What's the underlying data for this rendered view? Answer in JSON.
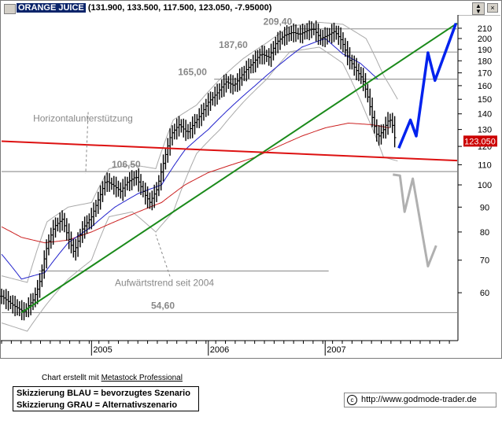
{
  "window": {
    "symbol": "ORANGE JUICE",
    "quote": "(131.900, 133.500, 117.500, 123.050, -7.95000)",
    "buttons": {
      "minimize": "_",
      "maximize": "□",
      "close": "×"
    }
  },
  "chart_data": {
    "type": "line",
    "subtype": "ohlc-bars-with-indicators",
    "title": "ORANGE JUICE",
    "y_scale": "log",
    "ylim": [
      48,
      222
    ],
    "y_ticks": [
      60,
      70,
      80,
      90,
      100,
      110,
      120,
      130,
      140,
      150,
      160,
      170,
      180,
      190,
      200,
      210
    ],
    "x_labels": [
      {
        "label": "2005",
        "t": 2005.0
      },
      {
        "label": "2006",
        "t": 2006.0
      },
      {
        "label": "2007",
        "t": 2007.0
      }
    ],
    "xlim": [
      2004.23,
      2008.13
    ],
    "last_price": {
      "value": 123.05,
      "label": "123.050",
      "color": "#cc0000"
    },
    "series_colors": {
      "price": "#000000",
      "bollinger": "#aaaaaa",
      "ma_short": "#2222cc",
      "ma_long": "#cc2222",
      "trendline": "#1a8a1a",
      "horizontal_support": "#dd1111",
      "levels": "#999999",
      "scenario_blue": "#0022ee",
      "scenario_gray": "#b0b0b0"
    },
    "price_anchors": [
      [
        2004.23,
        59.0
      ],
      [
        2004.33,
        56.5
      ],
      [
        2004.42,
        54.8
      ],
      [
        2004.5,
        58.0
      ],
      [
        2004.55,
        62.0
      ],
      [
        2004.62,
        75.0
      ],
      [
        2004.68,
        82.0
      ],
      [
        2004.75,
        85.0
      ],
      [
        2004.8,
        78.0
      ],
      [
        2004.85,
        72.5
      ],
      [
        2004.92,
        81.0
      ],
      [
        2005.0,
        86.0
      ],
      [
        2005.08,
        96.0
      ],
      [
        2005.12,
        102.0
      ],
      [
        2005.18,
        100.0
      ],
      [
        2005.25,
        97.0
      ],
      [
        2005.3,
        101.0
      ],
      [
        2005.38,
        104.0
      ],
      [
        2005.45,
        96.0
      ],
      [
        2005.5,
        92.0
      ],
      [
        2005.56,
        98.0
      ],
      [
        2005.62,
        112.0
      ],
      [
        2005.68,
        127.0
      ],
      [
        2005.75,
        133.0
      ],
      [
        2005.82,
        128.0
      ],
      [
        2005.88,
        134.0
      ],
      [
        2005.94,
        140.0
      ],
      [
        2006.0,
        148.0
      ],
      [
        2006.08,
        155.0
      ],
      [
        2006.15,
        163.0
      ],
      [
        2006.22,
        160.0
      ],
      [
        2006.3,
        170.0
      ],
      [
        2006.38,
        178.0
      ],
      [
        2006.45,
        186.0
      ],
      [
        2006.52,
        183.0
      ],
      [
        2006.58,
        196.0
      ],
      [
        2006.65,
        203.0
      ],
      [
        2006.72,
        206.0
      ],
      [
        2006.78,
        204.0
      ],
      [
        2006.85,
        208.0
      ],
      [
        2006.9,
        209.4
      ],
      [
        2006.96,
        200.0
      ],
      [
        2007.02,
        203.0
      ],
      [
        2007.08,
        207.0
      ],
      [
        2007.14,
        198.0
      ],
      [
        2007.2,
        182.0
      ],
      [
        2007.26,
        173.0
      ],
      [
        2007.32,
        165.0
      ],
      [
        2007.37,
        150.0
      ],
      [
        2007.41,
        135.0
      ],
      [
        2007.45,
        125.0
      ],
      [
        2007.5,
        130.0
      ],
      [
        2007.55,
        137.0
      ],
      [
        2007.58,
        131.9
      ],
      [
        2007.6,
        123.05
      ]
    ],
    "bollinger_upper": [
      [
        2004.23,
        65
      ],
      [
        2004.45,
        63
      ],
      [
        2004.62,
        84
      ],
      [
        2004.8,
        90
      ],
      [
        2005.0,
        92
      ],
      [
        2005.15,
        108
      ],
      [
        2005.35,
        110
      ],
      [
        2005.55,
        108
      ],
      [
        2005.7,
        136
      ],
      [
        2005.9,
        146
      ],
      [
        2006.1,
        165
      ],
      [
        2006.3,
        182
      ],
      [
        2006.5,
        196
      ],
      [
        2006.7,
        212
      ],
      [
        2006.95,
        216
      ],
      [
        2007.15,
        214
      ],
      [
        2007.35,
        200
      ],
      [
        2007.5,
        168
      ],
      [
        2007.62,
        150
      ]
    ],
    "bollinger_lower": [
      [
        2004.23,
        52
      ],
      [
        2004.45,
        50
      ],
      [
        2004.62,
        57
      ],
      [
        2004.8,
        64
      ],
      [
        2005.0,
        70
      ],
      [
        2005.15,
        86
      ],
      [
        2005.35,
        88
      ],
      [
        2005.55,
        80
      ],
      [
        2005.7,
        88
      ],
      [
        2005.9,
        116
      ],
      [
        2006.1,
        130
      ],
      [
        2006.3,
        148
      ],
      [
        2006.5,
        165
      ],
      [
        2006.7,
        188
      ],
      [
        2006.95,
        192
      ],
      [
        2007.15,
        178
      ],
      [
        2007.35,
        140
      ],
      [
        2007.5,
        114
      ],
      [
        2007.62,
        112
      ]
    ],
    "ma_short": [
      [
        2004.23,
        72
      ],
      [
        2004.4,
        64
      ],
      [
        2004.6,
        66
      ],
      [
        2004.8,
        76
      ],
      [
        2005.0,
        82
      ],
      [
        2005.2,
        90
      ],
      [
        2005.4,
        96
      ],
      [
        2005.6,
        100
      ],
      [
        2005.8,
        118
      ],
      [
        2006.0,
        130
      ],
      [
        2006.2,
        145
      ],
      [
        2006.4,
        160
      ],
      [
        2006.6,
        176
      ],
      [
        2006.8,
        192
      ],
      [
        2007.0,
        200
      ],
      [
        2007.15,
        186
      ],
      [
        2007.3,
        178
      ],
      [
        2007.45,
        165
      ]
    ],
    "ma_long": [
      [
        2004.23,
        82
      ],
      [
        2004.4,
        78
      ],
      [
        2004.6,
        76
      ],
      [
        2004.8,
        77
      ],
      [
        2005.0,
        80
      ],
      [
        2005.2,
        84
      ],
      [
        2005.4,
        88
      ],
      [
        2005.6,
        92
      ],
      [
        2005.8,
        100
      ],
      [
        2006.0,
        106
      ],
      [
        2006.2,
        110
      ],
      [
        2006.4,
        114
      ],
      [
        2006.6,
        120
      ],
      [
        2006.8,
        126
      ],
      [
        2007.0,
        131
      ],
      [
        2007.2,
        134
      ],
      [
        2007.4,
        133
      ],
      [
        2007.55,
        131
      ]
    ],
    "trendline_up": {
      "from": [
        2004.4,
        54.6
      ],
      "to": [
        2008.13,
        215.0
      ]
    },
    "horizontal_support": {
      "from": [
        2004.23,
        123.0
      ],
      "to": [
        2008.13,
        112.2
      ]
    },
    "levels": [
      {
        "value": 209.4,
        "label": "209,40",
        "t_start": 2006.78,
        "t_end": 2008.13
      },
      {
        "value": 187.6,
        "label": "187,60",
        "t_start": 2006.4,
        "t_end": 2008.13
      },
      {
        "value": 165.0,
        "label": "165,00",
        "t_start": 2006.05,
        "t_end": 2008.13
      },
      {
        "value": 106.5,
        "label": "106,50",
        "t_start": 2004.23,
        "t_end": 2008.13
      },
      {
        "value": 66.5,
        "label": "",
        "t_start": 2004.55,
        "t_end": 2007.03
      },
      {
        "value": 54.6,
        "label": "54,60",
        "t_start": 2004.23,
        "t_end": 2008.13
      }
    ],
    "scenario_blue": [
      [
        2007.63,
        119.0
      ],
      [
        2007.73,
        136.0
      ],
      [
        2007.78,
        126.0
      ],
      [
        2007.88,
        187.0
      ],
      [
        2007.94,
        164.0
      ],
      [
        2008.12,
        215.0
      ]
    ],
    "scenario_gray": [
      [
        2007.58,
        105.0
      ],
      [
        2007.64,
        104.5
      ],
      [
        2007.68,
        88.0
      ],
      [
        2007.75,
        103.0
      ],
      [
        2007.88,
        68.0
      ],
      [
        2007.95,
        75.0
      ]
    ],
    "annotations": [
      {
        "text": "Horizontalunterstützung",
        "t": 2004.5,
        "v": 135.0,
        "leader_to": [
          2004.95,
          105.5
        ]
      },
      {
        "text": "Aufwärtstrend seit 2004",
        "t": 2005.2,
        "v": 62.0,
        "leader_to": [
          2005.55,
          79.0
        ]
      }
    ]
  },
  "footer": {
    "credit_prefix": "Chart erstellt mit ",
    "credit_link": "Metastock Professional",
    "legend_line1": "Skizzierung BLAU = bevorzugtes Szenario",
    "legend_line2": "Skizzierung GRAU = Alternativszenario",
    "copyright_symbol": "c",
    "url": "http://www.godmode-trader.de"
  }
}
